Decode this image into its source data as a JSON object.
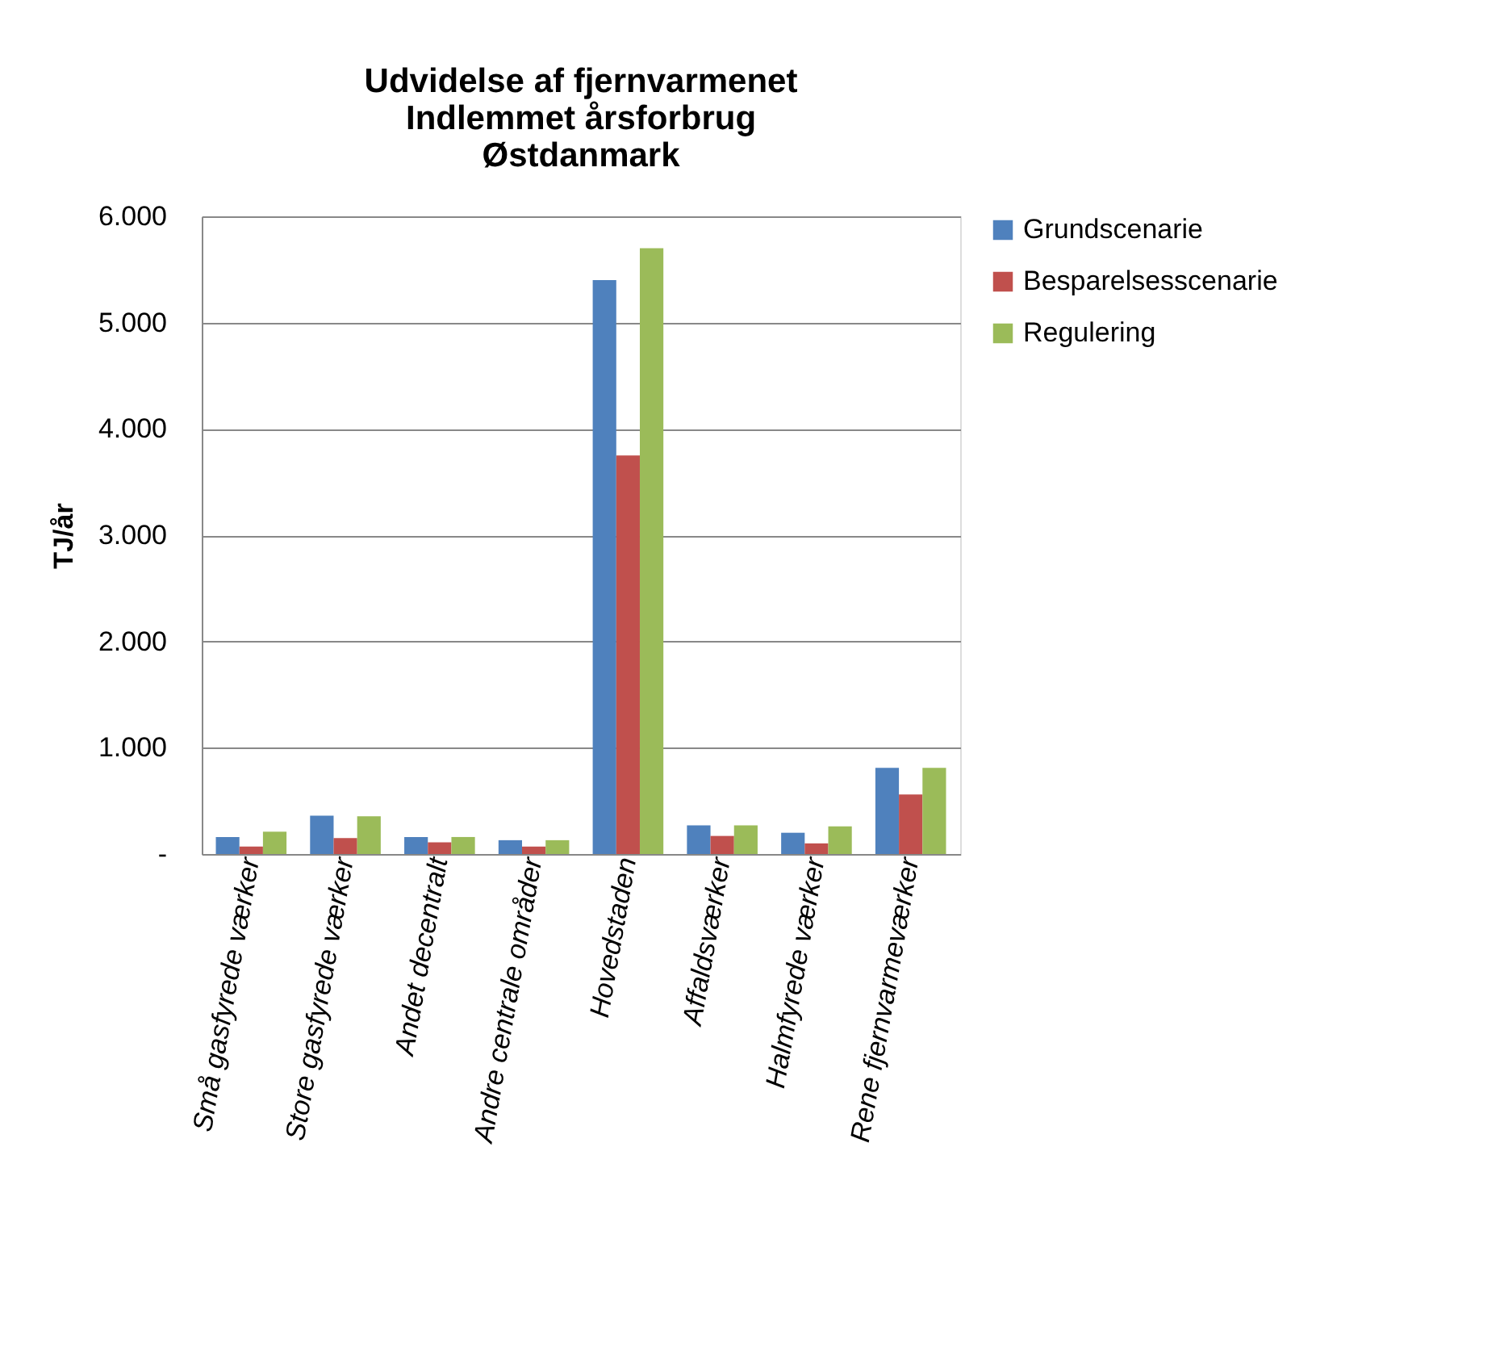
{
  "chart_data": {
    "type": "bar",
    "title": "Udvidelse af fjernvarmenet\nIndlemmet årsforbrug\nØstdanmark",
    "ylabel": "TJ/år",
    "categories": [
      "Små gasfyrede værker",
      "Store gasfyrede værker",
      "Andet decentralt",
      "Andre centrale områder",
      "Hovedstaden",
      "Affaldsværker",
      "Halmfyrede værker",
      "Rene fjernvarmeværker"
    ],
    "series": [
      {
        "name": "Grundscenarie",
        "color": "#4f81bd",
        "values": [
          160,
          360,
          160,
          130,
          5400,
          270,
          200,
          810
        ]
      },
      {
        "name": "Besparelsesscenarie",
        "color": "#c0504d",
        "values": [
          70,
          150,
          110,
          70,
          3750,
          170,
          100,
          560
        ]
      },
      {
        "name": "Regulering",
        "color": "#9bbb59",
        "values": [
          210,
          355,
          160,
          130,
          5700,
          270,
          260,
          810
        ]
      }
    ],
    "ylim": [
      0,
      6000
    ],
    "yticks": [
      {
        "value": 0,
        "label": "-"
      },
      {
        "value": 1000,
        "label": "1.000"
      },
      {
        "value": 2000,
        "label": "2.000"
      },
      {
        "value": 3000,
        "label": "3.000"
      },
      {
        "value": 4000,
        "label": "4.000"
      },
      {
        "value": 5000,
        "label": "5.000"
      },
      {
        "value": 6000,
        "label": "6.000"
      }
    ],
    "grid": "y",
    "legend": "right"
  }
}
